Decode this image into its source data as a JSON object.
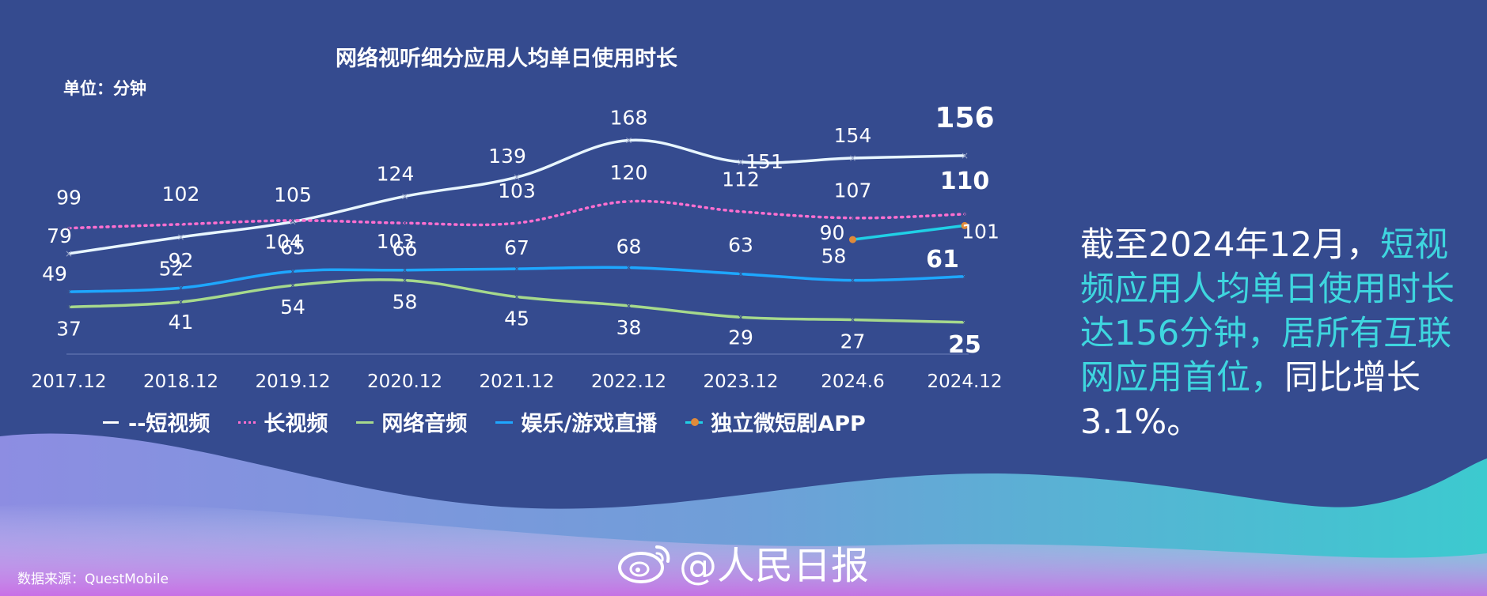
{
  "chart_data": {
    "type": "line",
    "title": "网络视听细分应用人均单日使用时长",
    "unit_label": "单位：分钟",
    "categories": [
      "2017.12",
      "2018.12",
      "2019.12",
      "2020.12",
      "2021.12",
      "2022.12",
      "2023.12",
      "2024.6",
      "2024.12"
    ],
    "series": [
      {
        "name": "短视频",
        "legend_label": "--短视频",
        "color": "#e8f6ff",
        "style": "solid",
        "values": [
          79,
          92,
          104,
          124,
          139,
          168,
          151,
          154,
          156
        ]
      },
      {
        "name": "长视频",
        "legend_label": "长视频",
        "color": "#ff6fd0",
        "style": "dotted",
        "values": [
          99,
          102,
          105,
          103,
          103,
          120,
          112,
          107,
          110
        ]
      },
      {
        "name": "网络音频",
        "legend_label": "网络音频",
        "color": "#a6d98c",
        "style": "solid",
        "values": [
          37,
          41,
          54,
          58,
          45,
          38,
          29,
          27,
          25
        ]
      },
      {
        "name": "娱乐/游戏直播",
        "legend_label": "娱乐/游戏直播",
        "color": "#1ea7ff",
        "style": "solid",
        "values": [
          49,
          52,
          65,
          66,
          67,
          68,
          63,
          58,
          61
        ]
      },
      {
        "name": "独立微短剧APP",
        "legend_label": "独立微短剧APP",
        "color": "#20d0e6",
        "style": "solid",
        "values": [
          null,
          null,
          null,
          null,
          null,
          null,
          null,
          90,
          101
        ]
      }
    ],
    "ylim": [
      0,
      190
    ],
    "grid": false,
    "legend_position": "bottom"
  },
  "summary": {
    "part1": "截至2024年12月，",
    "highlight": "短视频应用人均单日使用时长达156分钟，居所有互联网应用首位，",
    "part2": "同比增长3.1%。"
  },
  "source": "数据来源：QuestMobile",
  "watermark": "@人民日报",
  "colors": {
    "background": "#354b8f",
    "highlight": "#3ed6df",
    "wave_left": "#7b8be0",
    "wave_right": "#3ecad0",
    "wave_bottom": "#c678e6"
  }
}
